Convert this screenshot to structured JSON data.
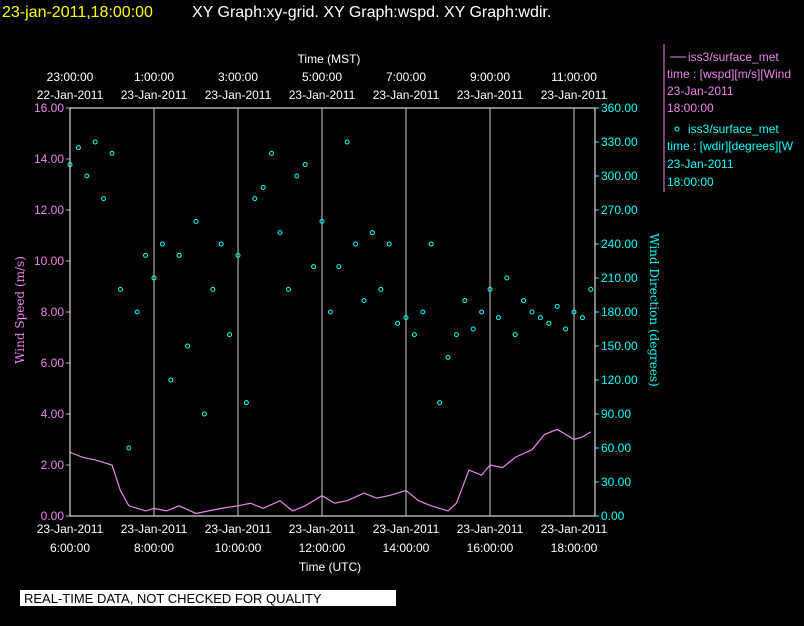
{
  "header": {
    "timestamp": "23-jan-2011,18:00:00",
    "graphs": "XY Graph:xy-grid.  XY Graph:wspd.  XY Graph:wdir."
  },
  "footer": {
    "note": "REAL-TIME DATA, NOT CHECKED FOR QUALITY"
  },
  "legend": {
    "wspd": {
      "station": "iss3/surface_met",
      "var": "time : [wspd][m/s][Wind",
      "date": "23-Jan-2011",
      "time": "18:00:00"
    },
    "wdir": {
      "station": "iss3/surface_met",
      "var": "time : [wdir][degrees][W",
      "date": "23-Jan-2011",
      "time": "18:00:00"
    }
  },
  "colors": {
    "wspd": "#ee82ee",
    "wdir": "#00ffff",
    "timestamp": "#ffff00",
    "grid": "#ffffff"
  },
  "chart_data": {
    "type": "line",
    "xlabel_top": "Time (MST)",
    "xlabel_bottom": "Time (UTC)",
    "ylabel_left": "Wind Speed (m/s)",
    "ylabel_right": "Wind Direction (degrees)",
    "xlim_utc_hours": [
      6,
      18.5
    ],
    "ylim_left": [
      0,
      16
    ],
    "ylim_right": [
      0,
      360
    ],
    "grid": true,
    "left_ticks": [
      "0.00",
      "2.00",
      "4.00",
      "6.00",
      "8.00",
      "10.00",
      "12.00",
      "14.00",
      "16.00"
    ],
    "right_ticks": [
      "0.00",
      "30.00",
      "60.00",
      "90.00",
      "120.00",
      "150.00",
      "180.00",
      "210.00",
      "240.00",
      "270.00",
      "300.00",
      "330.00",
      "360.00"
    ],
    "top_ticks": [
      {
        "time": "23:00:00",
        "date": "22-Jan-2011",
        "utc_h": 6
      },
      {
        "time": "1:00:00",
        "date": "23-Jan-2011",
        "utc_h": 8
      },
      {
        "time": "3:00:00",
        "date": "23-Jan-2011",
        "utc_h": 10
      },
      {
        "time": "5:00:00",
        "date": "23-Jan-2011",
        "utc_h": 12
      },
      {
        "time": "7:00:00",
        "date": "23-Jan-2011",
        "utc_h": 14
      },
      {
        "time": "9:00:00",
        "date": "23-Jan-2011",
        "utc_h": 16
      },
      {
        "time": "11:00:00",
        "date": "23-Jan-2011",
        "utc_h": 18
      }
    ],
    "bottom_ticks": [
      {
        "time": "6:00:00",
        "date": "23-Jan-2011",
        "utc_h": 6
      },
      {
        "time": "8:00:00",
        "date": "23-Jan-2011",
        "utc_h": 8
      },
      {
        "time": "10:00:00",
        "date": "23-Jan-2011",
        "utc_h": 10
      },
      {
        "time": "12:00:00",
        "date": "23-Jan-2011",
        "utc_h": 12
      },
      {
        "time": "14:00:00",
        "date": "23-Jan-2011",
        "utc_h": 14
      },
      {
        "time": "16:00:00",
        "date": "23-Jan-2011",
        "utc_h": 16
      },
      {
        "time": "18:00:00",
        "date": "23-Jan-2011",
        "utc_h": 18
      }
    ],
    "series": [
      {
        "name": "iss3/surface_met wspd",
        "axis": "left",
        "style": "line",
        "x": [
          6.0,
          6.3,
          6.6,
          7.0,
          7.2,
          7.4,
          7.6,
          7.8,
          8.0,
          8.3,
          8.6,
          9.0,
          9.3,
          9.6,
          10.0,
          10.3,
          10.6,
          11.0,
          11.3,
          11.6,
          12.0,
          12.3,
          12.6,
          13.0,
          13.3,
          13.6,
          14.0,
          14.3,
          14.6,
          15.0,
          15.2,
          15.5,
          15.8,
          16.0,
          16.3,
          16.6,
          17.0,
          17.3,
          17.6,
          18.0,
          18.2,
          18.4
        ],
        "y": [
          2.5,
          2.3,
          2.2,
          2.0,
          1.0,
          0.4,
          0.3,
          0.2,
          0.3,
          0.2,
          0.4,
          0.1,
          0.2,
          0.3,
          0.4,
          0.5,
          0.3,
          0.6,
          0.2,
          0.4,
          0.8,
          0.5,
          0.6,
          0.9,
          0.7,
          0.8,
          1.0,
          0.6,
          0.4,
          0.2,
          0.5,
          1.8,
          1.6,
          2.0,
          1.9,
          2.3,
          2.6,
          3.2,
          3.4,
          3.0,
          3.1,
          3.3
        ]
      },
      {
        "name": "iss3/surface_met wdir",
        "axis": "right",
        "style": "points",
        "x": [
          6.0,
          6.2,
          6.4,
          6.6,
          6.8,
          7.0,
          7.2,
          7.4,
          7.6,
          7.8,
          8.0,
          8.2,
          8.4,
          8.6,
          8.8,
          9.0,
          9.2,
          9.4,
          9.6,
          9.8,
          10.0,
          10.2,
          10.4,
          10.6,
          10.8,
          11.0,
          11.2,
          11.4,
          11.6,
          11.8,
          12.0,
          12.2,
          12.4,
          12.6,
          12.8,
          13.0,
          13.2,
          13.4,
          13.6,
          13.8,
          14.0,
          14.2,
          14.4,
          14.6,
          14.8,
          15.0,
          15.2,
          15.4,
          15.6,
          15.8,
          16.0,
          16.2,
          16.4,
          16.6,
          16.8,
          17.0,
          17.2,
          17.4,
          17.6,
          17.8,
          18.0,
          18.2,
          18.4
        ],
        "y": [
          310,
          325,
          300,
          330,
          280,
          320,
          200,
          60,
          180,
          230,
          210,
          240,
          120,
          230,
          150,
          260,
          90,
          200,
          240,
          160,
          230,
          100,
          280,
          290,
          320,
          250,
          200,
          300,
          310,
          220,
          260,
          180,
          220,
          330,
          240,
          190,
          250,
          200,
          240,
          170,
          175,
          160,
          180,
          240,
          100,
          140,
          160,
          190,
          165,
          180,
          200,
          175,
          210,
          160,
          190,
          180,
          175,
          170,
          185,
          165,
          180,
          175,
          200
        ]
      }
    ]
  }
}
